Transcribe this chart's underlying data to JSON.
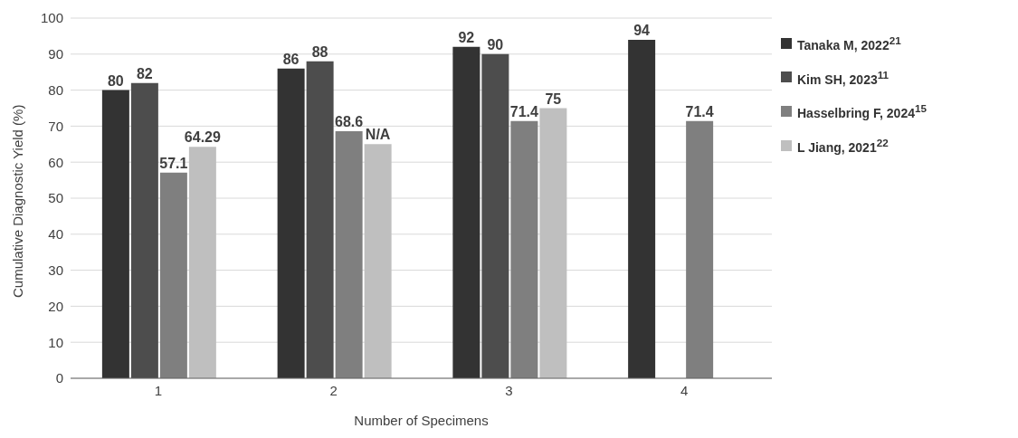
{
  "chart_data": {
    "type": "bar",
    "xlabel": "Number of Specimens",
    "ylabel": "Cumulative Diagnostic Yield (%)",
    "categories": [
      "1",
      "2",
      "3",
      "4"
    ],
    "series": [
      {
        "name": "Tanaka M, 2022$^{21}$",
        "color": "#333333",
        "values": [
          80,
          86,
          92,
          94
        ],
        "value_labels": [
          "80",
          "86",
          "92",
          "94"
        ]
      },
      {
        "name": "Kim SH, 2023$^{11}$",
        "color": "#4d4d4d",
        "values": [
          82,
          88,
          90,
          null
        ],
        "value_labels": [
          "82",
          "88",
          "90",
          null
        ]
      },
      {
        "name": "Hasselbring F, 2024$^{15}$",
        "color": "#7f7f7f",
        "values": [
          57.1,
          68.6,
          71.4,
          71.4
        ],
        "value_labels": [
          "57.1",
          "68.6",
          "71.4",
          "71.4"
        ]
      },
      {
        "name": "L Jiang, 2021$^{22}$",
        "color": "#bfbfbf",
        "values": [
          64.29,
          65,
          75,
          null
        ],
        "value_labels": [
          "64.29",
          "N/A",
          "75",
          null
        ]
      }
    ],
    "ylim": [
      0,
      100
    ],
    "yticks": [
      0,
      10,
      20,
      30,
      40,
      50,
      60,
      70,
      80,
      90,
      100
    ],
    "grid": "y",
    "legend": "right"
  }
}
